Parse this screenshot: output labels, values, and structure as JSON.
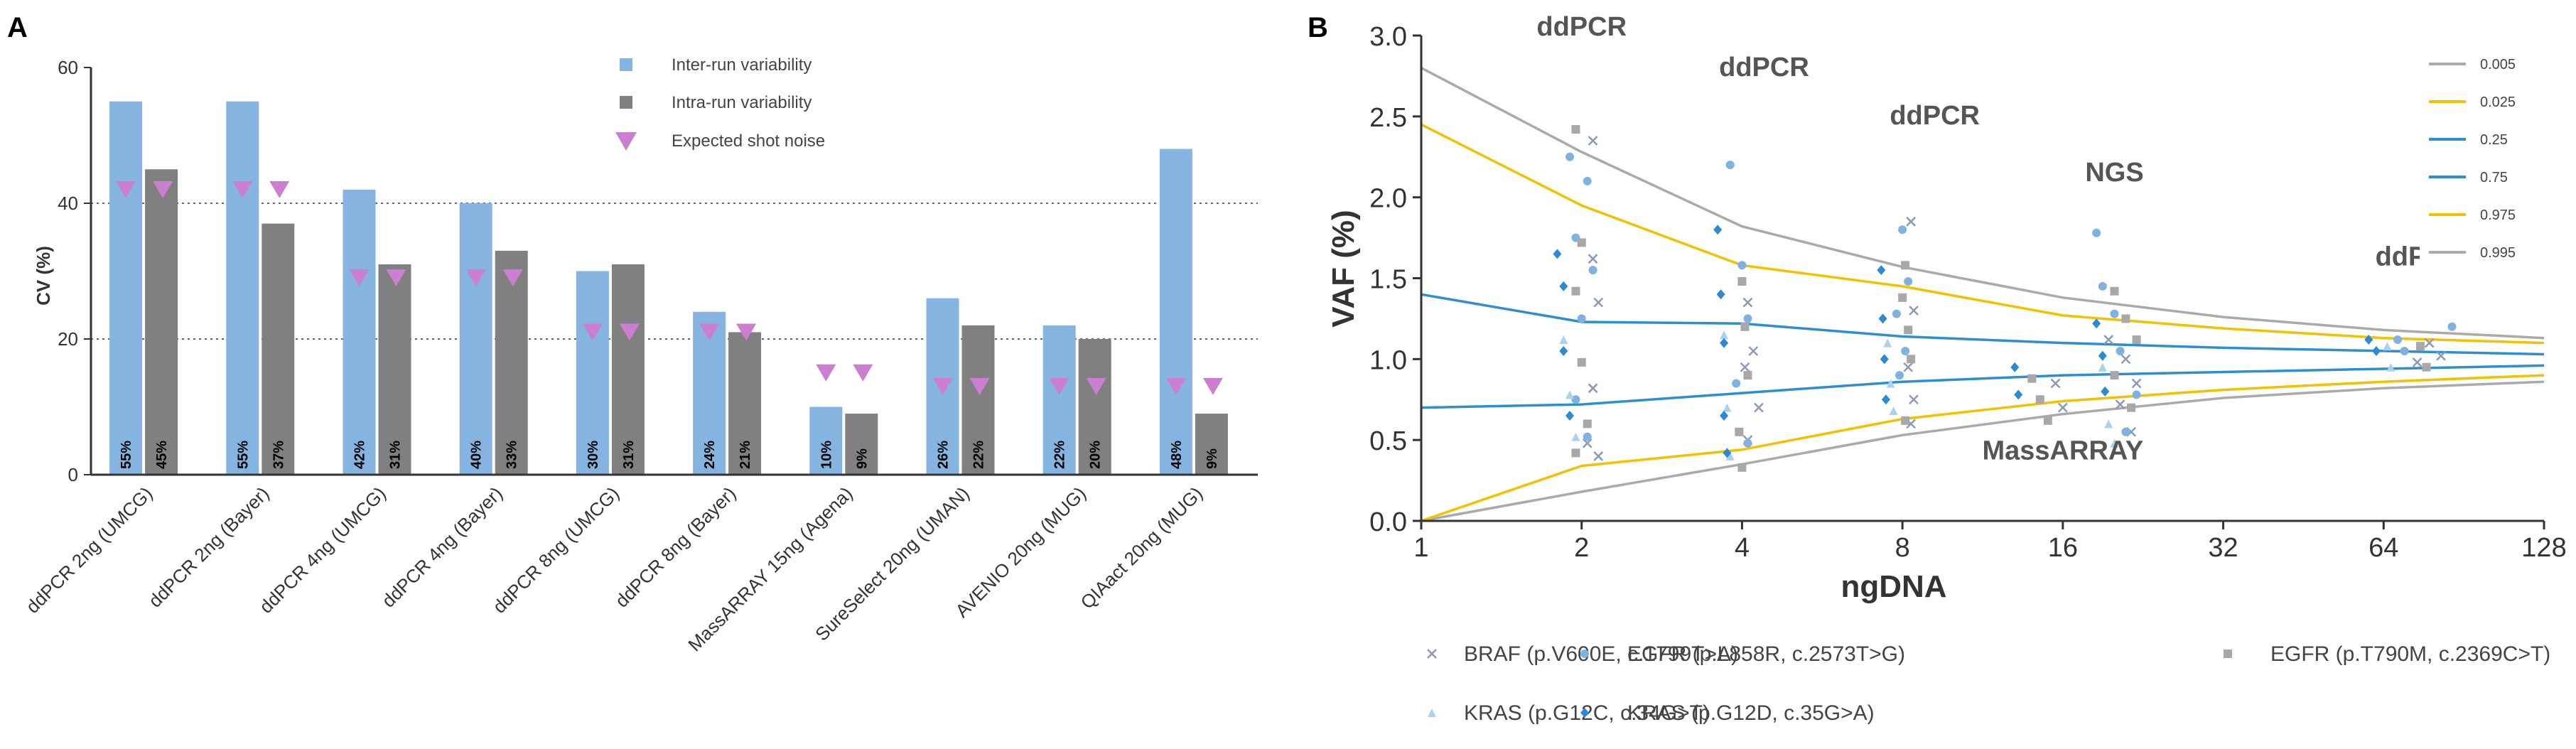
{
  "figure": {
    "panel_a_letter": "A",
    "panel_b_letter": "B"
  },
  "chart_data": [
    {
      "panel": "A",
      "type": "bar",
      "ylabel": "CV (%)",
      "xlabel": "",
      "ylim": [
        0,
        60
      ],
      "yticks": [
        0,
        20,
        40,
        60
      ],
      "gridlines_dotted": [
        20,
        40
      ],
      "categories": [
        "ddPCR 2ng (UMCG)",
        "ddPCR 2ng (Bayer)",
        "ddPCR 4ng (UMCG)",
        "ddPCR 4ng (Bayer)",
        "ddPCR 8ng (UMCG)",
        "ddPCR 8ng (Bayer)",
        "MassARRAY 15ng (Agena)",
        "SureSelect 20ng (UMAN)",
        "AVENIO 20ng (MUG)",
        "QIAact 20ng (MUG)"
      ],
      "series": [
        {
          "name": "Inter-run variability",
          "color": "#86b4e0",
          "values": [
            55,
            55,
            42,
            40,
            30,
            24,
            10,
            26,
            22,
            48
          ],
          "labels": [
            "55%",
            "55%",
            "42%",
            "40%",
            "30%",
            "24%",
            "10%",
            "26%",
            "22%",
            "48%"
          ]
        },
        {
          "name": "Intra-run variability",
          "color": "#808080",
          "values": [
            45,
            37,
            31,
            33,
            31,
            21,
            9,
            22,
            20,
            9
          ],
          "labels": [
            "45%",
            "37%",
            "31%",
            "33%",
            "31%",
            "21%",
            "9%",
            "22%",
            "20%",
            "9%"
          ]
        },
        {
          "name": "Expected shot noise",
          "color": "#cc7fd0",
          "marker": "triangle-down",
          "values": [
            42,
            42,
            29,
            29,
            21,
            21,
            15,
            13,
            13,
            13
          ]
        }
      ],
      "legend_position": "top-right"
    },
    {
      "panel": "B",
      "type": "line",
      "xlabel": "ngDNA",
      "ylabel": "VAF (%)",
      "xscale": "log2",
      "xlim": [
        1,
        128
      ],
      "xticks": [
        "1",
        "2",
        "4",
        "8",
        "16",
        "32",
        "64",
        "128"
      ],
      "ylim": [
        0,
        3.0
      ],
      "yticks": [
        "0.0",
        "0.5",
        "1.0",
        "1.5",
        "2.0",
        "2.5",
        "3.0"
      ],
      "quantile_lines": [
        {
          "name": "0.005",
          "color": "#aaaaaa",
          "points": [
            [
              1,
              0.0
            ],
            [
              2,
              0.18
            ],
            [
              4,
              0.35
            ],
            [
              8,
              0.53
            ],
            [
              16,
              0.66
            ],
            [
              32,
              0.76
            ],
            [
              64,
              0.82
            ],
            [
              128,
              0.86
            ]
          ]
        },
        {
          "name": "0.025",
          "color": "#f2c200",
          "points": [
            [
              1,
              0.0
            ],
            [
              2,
              0.34
            ],
            [
              4,
              0.44
            ],
            [
              8,
              0.63
            ],
            [
              16,
              0.74
            ],
            [
              32,
              0.81
            ],
            [
              64,
              0.86
            ],
            [
              128,
              0.9
            ]
          ]
        },
        {
          "name": "0.25",
          "color": "#2e8fd0",
          "points": [
            [
              1,
              0.7
            ],
            [
              2,
              0.72
            ],
            [
              4,
              0.79
            ],
            [
              8,
              0.86
            ],
            [
              16,
              0.9
            ],
            [
              32,
              0.92
            ],
            [
              64,
              0.94
            ],
            [
              128,
              0.96
            ]
          ]
        },
        {
          "name": "0.75",
          "color": "#2e8fd0",
          "points": [
            [
              1,
              1.4
            ],
            [
              2,
              1.23
            ],
            [
              4,
              1.22
            ],
            [
              8,
              1.14
            ],
            [
              16,
              1.1
            ],
            [
              32,
              1.07
            ],
            [
              64,
              1.05
            ],
            [
              128,
              1.03
            ]
          ]
        },
        {
          "name": "0.975",
          "color": "#f2c200",
          "points": [
            [
              1,
              2.45
            ],
            [
              2,
              1.95
            ],
            [
              4,
              1.58
            ],
            [
              8,
              1.45
            ],
            [
              16,
              1.27
            ],
            [
              32,
              1.19
            ],
            [
              64,
              1.13
            ],
            [
              128,
              1.1
            ]
          ]
        },
        {
          "name": "0.995",
          "color": "#aaaaaa",
          "points": [
            [
              1,
              2.8
            ],
            [
              2,
              2.28
            ],
            [
              4,
              1.82
            ],
            [
              8,
              1.57
            ],
            [
              16,
              1.38
            ],
            [
              32,
              1.26
            ],
            [
              64,
              1.18
            ],
            [
              128,
              1.13
            ]
          ]
        }
      ],
      "annotations": [
        {
          "text": "ddPCR",
          "x": 2,
          "y": 3.0
        },
        {
          "text": "ddPCR",
          "x": 4.4,
          "y": 2.75
        },
        {
          "text": "ddPCR",
          "x": 9.2,
          "y": 2.45
        },
        {
          "text": "NGS",
          "x": 20,
          "y": 2.1
        },
        {
          "text": "MassARRAY",
          "x": 16,
          "y": 0.38
        },
        {
          "text": "ddPCR",
          "x": 75,
          "y": 1.58
        }
      ],
      "scatter_series": [
        {
          "name": "BRAF (p.V600E, c.1799T>A)",
          "marker": "x",
          "color": "#8a9bb8",
          "points": [
            [
              2.1,
              2.35
            ],
            [
              2.1,
              1.62
            ],
            [
              2.15,
              1.35
            ],
            [
              2.1,
              0.82
            ],
            [
              2.05,
              0.48
            ],
            [
              2.15,
              0.4
            ],
            [
              4.1,
              1.35
            ],
            [
              4.2,
              1.05
            ],
            [
              4.05,
              0.95
            ],
            [
              4.3,
              0.7
            ],
            [
              4.1,
              0.5
            ],
            [
              8.3,
              1.85
            ],
            [
              8.4,
              1.3
            ],
            [
              8.2,
              0.95
            ],
            [
              8.4,
              0.75
            ],
            [
              8.3,
              0.6
            ],
            [
              15.5,
              0.85
            ],
            [
              16,
              0.7
            ],
            [
              19.5,
              1.12
            ],
            [
              21,
              1.0
            ],
            [
              22,
              0.85
            ],
            [
              20.5,
              0.72
            ],
            [
              21.5,
              0.55
            ],
            [
              78,
              1.1
            ],
            [
              82,
              1.02
            ],
            [
              74,
              0.98
            ]
          ]
        },
        {
          "name": "EGFR (p.L858R, c.2573T>G)",
          "marker": "circle",
          "color": "#7fb2e0",
          "points": [
            [
              1.9,
              2.25
            ],
            [
              2.05,
              2.1
            ],
            [
              1.95,
              1.75
            ],
            [
              2.1,
              1.55
            ],
            [
              2.0,
              1.25
            ],
            [
              1.95,
              0.75
            ],
            [
              2.05,
              0.52
            ],
            [
              3.8,
              2.2
            ],
            [
              4.0,
              1.58
            ],
            [
              4.1,
              1.25
            ],
            [
              3.9,
              0.85
            ],
            [
              4.1,
              0.48
            ],
            [
              8.0,
              1.8
            ],
            [
              8.2,
              1.48
            ],
            [
              7.8,
              1.28
            ],
            [
              8.1,
              1.05
            ],
            [
              7.9,
              0.9
            ],
            [
              18.5,
              1.78
            ],
            [
              19,
              1.45
            ],
            [
              20,
              1.28
            ],
            [
              20.5,
              1.05
            ],
            [
              22,
              0.78
            ],
            [
              21,
              0.55
            ],
            [
              68,
              1.12
            ],
            [
              70,
              1.05
            ],
            [
              86,
              1.2
            ]
          ]
        },
        {
          "name": "EGFR (p.T790M, c.2369C>T)",
          "marker": "square",
          "color": "#a8a8a8",
          "points": [
            [
              1.95,
              2.42
            ],
            [
              2.0,
              1.72
            ],
            [
              1.95,
              1.42
            ],
            [
              2.0,
              0.98
            ],
            [
              2.05,
              0.6
            ],
            [
              1.95,
              0.42
            ],
            [
              4.0,
              1.48
            ],
            [
              4.05,
              1.2
            ],
            [
              4.1,
              0.9
            ],
            [
              3.95,
              0.55
            ],
            [
              4.0,
              0.33
            ],
            [
              8.1,
              1.58
            ],
            [
              8.0,
              1.38
            ],
            [
              8.2,
              1.18
            ],
            [
              8.3,
              1.0
            ],
            [
              8.1,
              0.62
            ],
            [
              14,
              0.88
            ],
            [
              14.5,
              0.75
            ],
            [
              15,
              0.62
            ],
            [
              20,
              1.42
            ],
            [
              21,
              1.25
            ],
            [
              22,
              1.12
            ],
            [
              20,
              0.9
            ],
            [
              21.5,
              0.7
            ],
            [
              75,
              1.08
            ],
            [
              77,
              0.95
            ]
          ]
        },
        {
          "name": "KRAS (p.G12C, c.34G>T)",
          "marker": "triangle",
          "color": "#a9d2ee",
          "points": [
            [
              1.85,
              1.12
            ],
            [
              1.9,
              0.78
            ],
            [
              1.95,
              0.52
            ],
            [
              3.7,
              1.15
            ],
            [
              3.75,
              0.7
            ],
            [
              3.8,
              0.4
            ],
            [
              7.5,
              1.1
            ],
            [
              7.6,
              0.85
            ],
            [
              7.7,
              0.68
            ],
            [
              19,
              0.95
            ],
            [
              19.5,
              0.6
            ],
            [
              20,
              0.48
            ],
            [
              65,
              1.08
            ],
            [
              66,
              0.95
            ]
          ]
        },
        {
          "name": "KRAS (p.G12D, c.35G>A)",
          "marker": "diamond",
          "color": "#2d8ad0",
          "points": [
            [
              1.8,
              1.65
            ],
            [
              1.85,
              1.45
            ],
            [
              1.85,
              1.05
            ],
            [
              1.9,
              0.65
            ],
            [
              3.6,
              1.8
            ],
            [
              3.65,
              1.4
            ],
            [
              3.7,
              1.1
            ],
            [
              3.7,
              0.65
            ],
            [
              3.75,
              0.42
            ],
            [
              7.3,
              1.55
            ],
            [
              7.35,
              1.25
            ],
            [
              7.4,
              1.0
            ],
            [
              7.45,
              0.75
            ],
            [
              13,
              0.95
            ],
            [
              13.2,
              0.78
            ],
            [
              18.5,
              1.22
            ],
            [
              19,
              1.02
            ],
            [
              19.2,
              0.8
            ],
            [
              60,
              1.12
            ],
            [
              62,
              1.05
            ]
          ]
        }
      ]
    }
  ]
}
